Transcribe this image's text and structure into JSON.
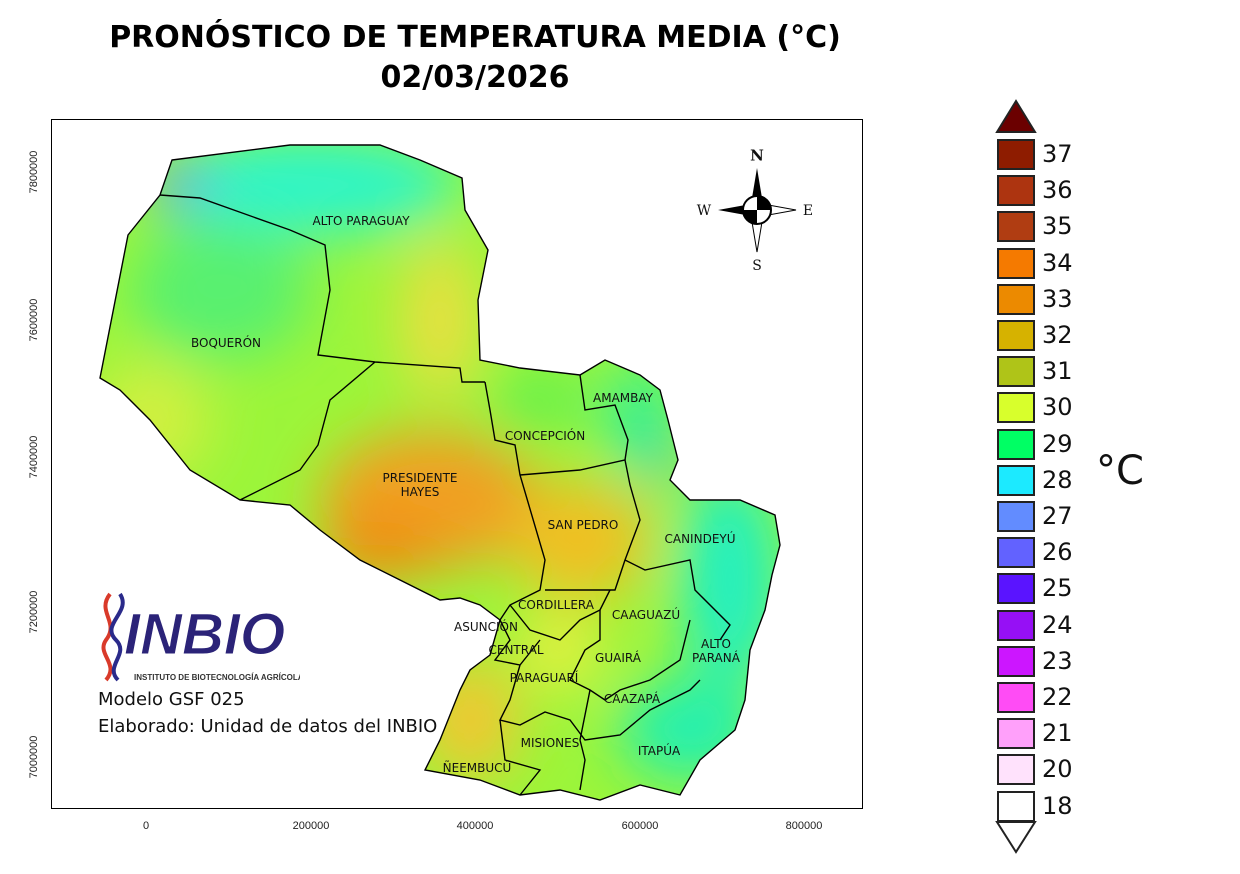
{
  "title": "PRONÓSTICO DE TEMPERATURA MEDIA (°C)",
  "date": "02/03/2026",
  "x_ticks": [
    "0",
    "200000",
    "400000",
    "600000",
    "800000"
  ],
  "y_ticks": [
    "7800000",
    "7600000",
    "7400000",
    "7200000",
    "7000000"
  ],
  "departments": [
    {
      "label": "ALTO PARAGUAY"
    },
    {
      "label": "BOQUERÓN"
    },
    {
      "label": "PRESIDENTE\nHAYES"
    },
    {
      "label": "CONCEPCIÓN"
    },
    {
      "label": "AMAMBAY"
    },
    {
      "label": "SAN PEDRO"
    },
    {
      "label": "CANINDEYÚ"
    },
    {
      "label": "CORDILLERA"
    },
    {
      "label": "ASUNCIÓN"
    },
    {
      "label": "CENTRAL"
    },
    {
      "label": "CAAGUAZÚ"
    },
    {
      "label": "ALTO\nPARANÁ"
    },
    {
      "label": "GUAIRÁ"
    },
    {
      "label": "PARAGUARÍ"
    },
    {
      "label": "CAAZAPÁ"
    },
    {
      "label": "MISIONES"
    },
    {
      "label": "ITAPÚA"
    },
    {
      "label": "ÑEEMBUCÚ"
    }
  ],
  "compass": {
    "n": "N",
    "s": "S",
    "e": "E",
    "w": "W"
  },
  "logo": {
    "name": "INBIO",
    "subtitle": "INSTITUTO DE BIOTECNOLOGÍA AGRÍCOLA"
  },
  "credits": {
    "model": "Modelo GSF 025",
    "author": "Elaborado: Unidad de datos del INBIO"
  },
  "legend": {
    "unit": "°C",
    "over_color": "#6b0000",
    "under_color": "#ffffff",
    "items": [
      {
        "label": "37",
        "color": "#8e1c00"
      },
      {
        "label": "36",
        "color": "#ad3410"
      },
      {
        "label": "35",
        "color": "#b03d12"
      },
      {
        "label": "34",
        "color": "#f57a00"
      },
      {
        "label": "33",
        "color": "#ec8a00"
      },
      {
        "label": "32",
        "color": "#d6b200"
      },
      {
        "label": "31",
        "color": "#afc418"
      },
      {
        "label": "30",
        "color": "#d8ff2c"
      },
      {
        "label": "29",
        "color": "#00ff64"
      },
      {
        "label": "28",
        "color": "#1ceaff"
      },
      {
        "label": "27",
        "color": "#628cff"
      },
      {
        "label": "26",
        "color": "#6262ff"
      },
      {
        "label": "25",
        "color": "#5a14ff"
      },
      {
        "label": "24",
        "color": "#9610f5"
      },
      {
        "label": "23",
        "color": "#cc16ff"
      },
      {
        "label": "22",
        "color": "#ff4cf5"
      },
      {
        "label": "21",
        "color": "#ffa0fa"
      },
      {
        "label": "20",
        "color": "#ffe2fc"
      },
      {
        "label": "18",
        "color": "#ffffff"
      }
    ]
  }
}
